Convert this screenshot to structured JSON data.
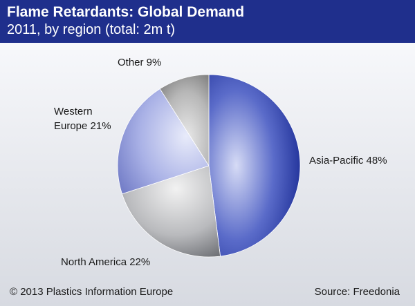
{
  "header": {
    "title": "Flame Retardants: Global Demand",
    "subtitle": "2011, by region (total: 2m t)"
  },
  "footer": {
    "copyright": "© 2013 Plastics Information Europe",
    "source": "Source: Freedonia"
  },
  "colors": {
    "header_bg": "#1f2f8c",
    "asia_pacific": "#2b3ca6",
    "north_america": "#8f9196",
    "western_europe": "#8e96d6",
    "other": "#9a9a9a"
  },
  "chart_data": {
    "type": "pie",
    "title": "Flame Retardants: Global Demand",
    "subtitle": "2011, by region (total: 2m t)",
    "categories": [
      "Asia-Pacific",
      "North America",
      "Western Europe",
      "Other"
    ],
    "values": [
      48,
      22,
      21,
      9
    ],
    "unit": "%",
    "labels": {
      "asia_pacific": "Asia-Pacific 48%",
      "north_america": "North America 22%",
      "western_europe_line1": "Western",
      "western_europe_line2": "Europe 21%",
      "other": "Other 9%"
    }
  }
}
